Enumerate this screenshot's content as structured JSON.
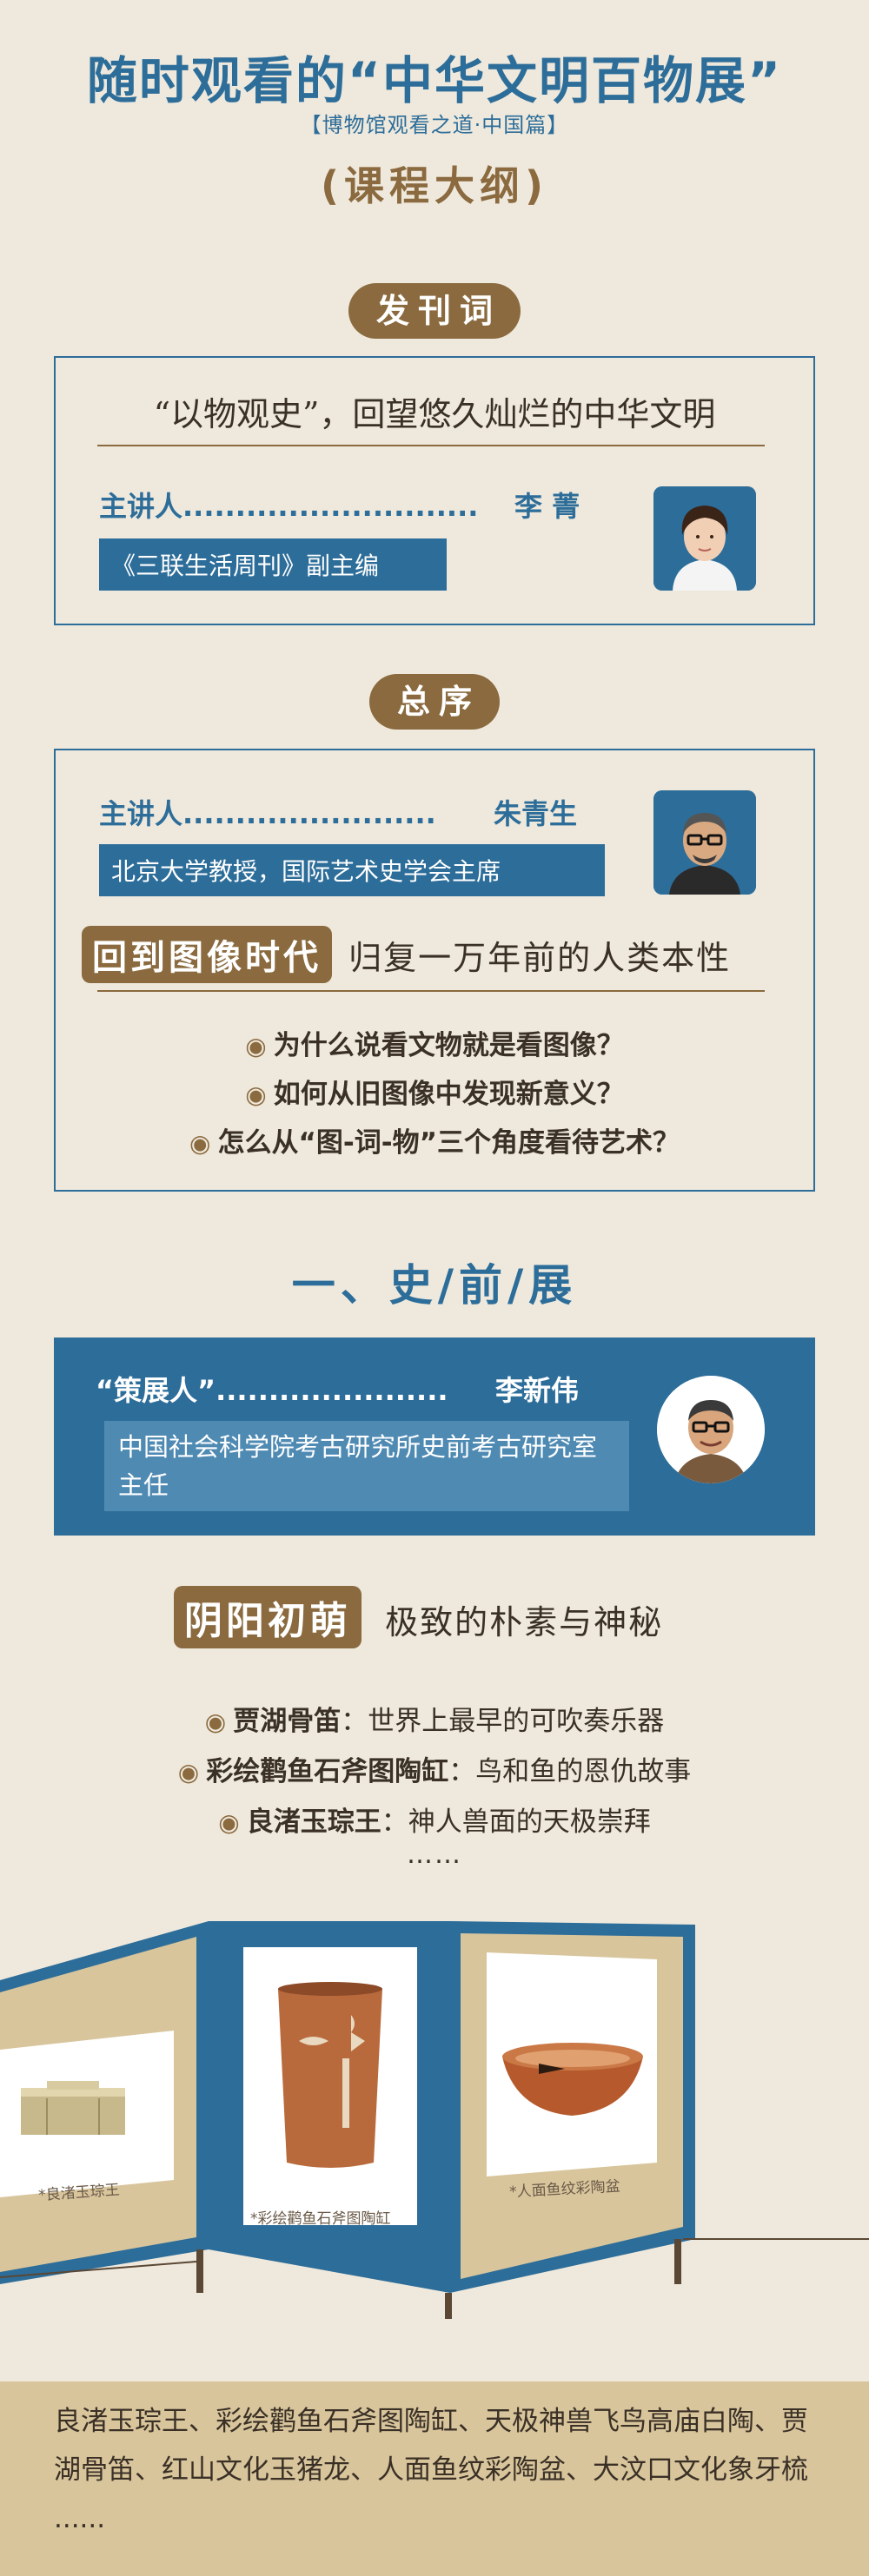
{
  "header": {
    "title": "随时观看的“中华文明百物展”",
    "subtitle": "【博物馆观看之道·中国篇】",
    "outline": "(课程大纲)"
  },
  "foreword": {
    "heading": "发刊词",
    "quote": "“以物观史”，回望悠久灿烂的中华文明",
    "speaker_label": "主讲人",
    "speaker_dots": "............................",
    "speaker_name": "李 菁",
    "speaker_title": "《三联生活周刊》副主编"
  },
  "preface": {
    "heading": "总序",
    "speaker_label": "主讲人",
    "speaker_dots": "........................",
    "speaker_name": "朱青生",
    "speaker_title": "北京大学教授，国际艺术史学会主席",
    "keyword": "回到图像时代",
    "keyword_text": "归复一万年前的人类本性",
    "questions": [
      "为什么说看文物就是看图像？",
      "如何从旧图像中发现新意义？",
      "怎么从“图-词-物”三个角度看待艺术？"
    ]
  },
  "section1": {
    "title": "一、史/前/展",
    "curator_label": "“策展人”",
    "curator_dots": "......................",
    "curator_name": "李新伟",
    "curator_title": "中国社会科学院考古研究所史前考古研究室主任",
    "keyword": "阴阳初萌",
    "keyword_text": "极致的朴素与神秘",
    "items": [
      {
        "name": "贾湖骨笛",
        "desc": "：世界上最早的可吹奏乐器"
      },
      {
        "name": "彩绘鹳鱼石斧图陶缸",
        "desc": "：鸟和鱼的恩仇故事"
      },
      {
        "name": "良渚玉琮王",
        "desc": "：神人兽面的天极崇拜"
      }
    ],
    "ellipsis": "……",
    "exhibits": [
      "*良渚玉琮王",
      "*彩绘鹳鱼石斧图陶缸",
      "*人面鱼纹彩陶盆"
    ],
    "footer_text": "良渚玉琮王、彩绘鹳鱼石斧图陶缸、天极神兽飞鸟高庙白陶、贾湖骨笛、红山文化玉猪龙、人面鱼纹彩陶盆、大汶口文化象牙梳 ......"
  },
  "colors": {
    "blue": "#2d6d99",
    "brown": "#8a6a3e",
    "beige": "#d8c59c",
    "paper": "#efe9dd"
  }
}
